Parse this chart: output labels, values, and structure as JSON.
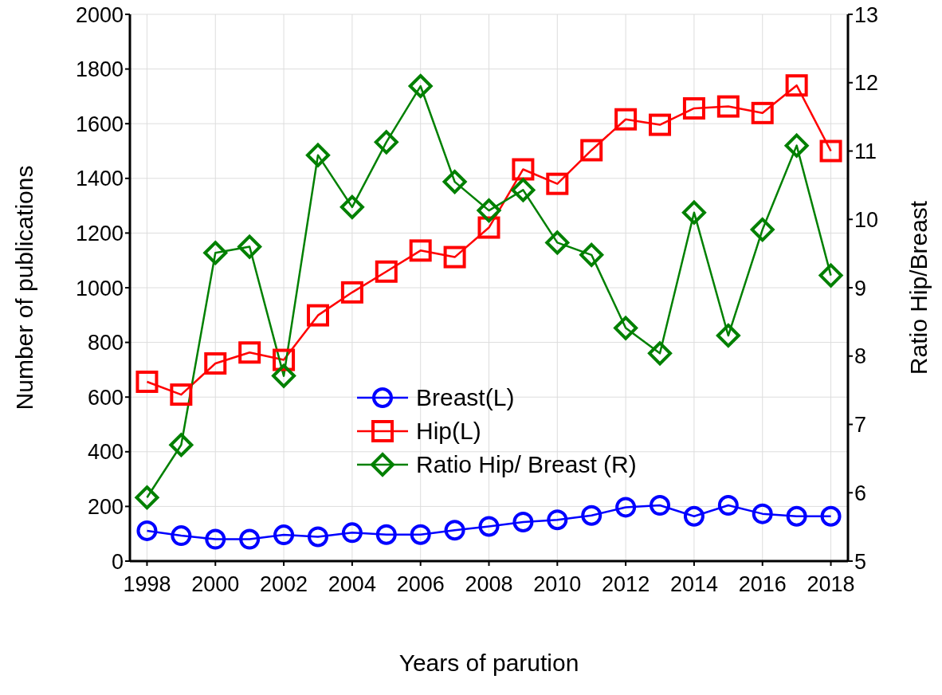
{
  "chart_data": {
    "type": "line",
    "xlabel": "Years of parution",
    "ylabel": "Number of publications",
    "y2label": "Ratio Hip/Breast",
    "x": [
      1998,
      1999,
      2000,
      2001,
      2002,
      2003,
      2004,
      2005,
      2006,
      2007,
      2008,
      2009,
      2010,
      2011,
      2012,
      2013,
      2014,
      2015,
      2016,
      2017,
      2018
    ],
    "series": [
      {
        "name": "Breast(L)",
        "color": "#0000ff",
        "marker": "circle",
        "values": [
          111,
          93,
          80,
          80,
          96,
          89,
          104,
          97,
          97,
          113,
          127,
          143,
          151,
          167,
          197,
          204,
          164,
          204,
          173,
          164,
          164
        ]
      },
      {
        "name": "Hip(L)",
        "color": "#ff0000",
        "marker": "square",
        "values": [
          656,
          609,
          723,
          763,
          736,
          899,
          983,
          1059,
          1136,
          1112,
          1220,
          1433,
          1380,
          1503,
          1616,
          1596,
          1656,
          1663,
          1639,
          1740,
          1500
        ]
      },
      {
        "name": "Ratio Hip/ Breast (R)",
        "color": "#008000",
        "marker": "diamond",
        "axis": "y2",
        "values": [
          5.93,
          6.7,
          9.51,
          9.6,
          7.71,
          10.94,
          10.18,
          11.13,
          11.95,
          10.55,
          10.13,
          10.43,
          9.66,
          9.48,
          8.41,
          8.04,
          10.1,
          8.3,
          9.85,
          11.08,
          9.18
        ]
      }
    ],
    "xlim": [
      1997.5,
      2018.5
    ],
    "xticks": [
      1998,
      2000,
      2002,
      2004,
      2006,
      2008,
      2010,
      2012,
      2014,
      2016,
      2018
    ],
    "ylim": [
      0,
      2000
    ],
    "yticks": [
      0,
      200,
      400,
      600,
      800,
      1000,
      1200,
      1400,
      1600,
      1800,
      2000
    ],
    "y2lim": [
      5,
      13
    ],
    "y2ticks": [
      5,
      6,
      7,
      8,
      9,
      10,
      11,
      12,
      13
    ],
    "grid": true,
    "legend": "center",
    "line_style": "solid"
  }
}
